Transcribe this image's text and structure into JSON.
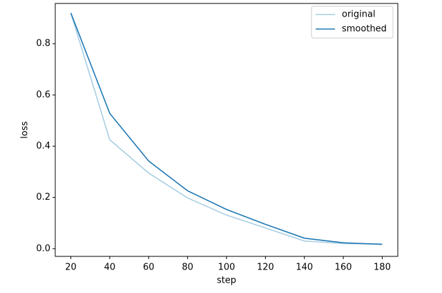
{
  "chart_data": {
    "type": "line",
    "xlabel": "step",
    "ylabel": "loss",
    "x": [
      20,
      40,
      60,
      80,
      100,
      120,
      140,
      160,
      180
    ],
    "series": [
      {
        "name": "original",
        "color": "#a6cee3",
        "values": [
          0.92,
          0.425,
          0.295,
          0.198,
          0.131,
          0.081,
          0.03,
          0.02,
          0.018
        ]
      },
      {
        "name": "smoothed",
        "color": "#1f78b4",
        "values": [
          0.92,
          0.528,
          0.342,
          0.226,
          0.153,
          0.095,
          0.041,
          0.023,
          0.017
        ]
      }
    ],
    "xlim": [
      12,
      188
    ],
    "ylim": [
      -0.03,
      0.957
    ],
    "xticks": [
      20,
      40,
      60,
      80,
      100,
      120,
      140,
      160,
      180
    ],
    "yticks": [
      {
        "value": 0,
        "label": "0.0"
      },
      {
        "value": 0.2,
        "label": "0.2"
      },
      {
        "value": 0.4,
        "label": "0.4"
      },
      {
        "value": 0.6,
        "label": "0.6"
      },
      {
        "value": 0.8,
        "label": "0.8"
      }
    ],
    "legend": "upper right",
    "grid": false
  }
}
